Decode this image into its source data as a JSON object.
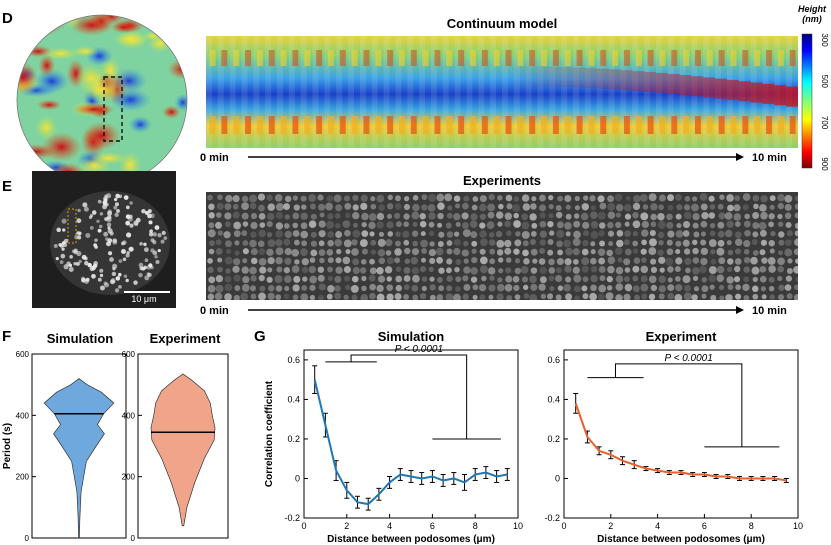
{
  "panels": {
    "D": "D",
    "E": "E",
    "F": "F",
    "G": "G"
  },
  "panel_d": {
    "title": "Continuum model",
    "time_start": "0 min",
    "time_end": "10 min",
    "colorbar": {
      "title_line1": "Height",
      "title_line2": "(nm)",
      "ticks": [
        "300",
        "500",
        "700",
        "900"
      ]
    }
  },
  "panel_e": {
    "title": "Experiments",
    "time_start": "0 min",
    "time_end": "10 min",
    "scale_bar": "10 μm"
  },
  "chart_data": [
    {
      "type": "violin",
      "title": "Simulation",
      "ylabel": "Period (s)",
      "ylim": [
        0,
        600
      ],
      "yticks": [
        0,
        200,
        400,
        600
      ],
      "median": 405,
      "color": "#6fa8dc"
    },
    {
      "type": "violin",
      "title": "Experiment",
      "ylim": [
        0,
        600
      ],
      "yticks": [
        0,
        200,
        400,
        600
      ],
      "median": 345,
      "color": "#f0a58a"
    },
    {
      "type": "line",
      "title": "Simulation",
      "xlabel": "Distance between podosomes (μm)",
      "ylabel": "Correlation coefficient",
      "xlim": [
        0,
        10
      ],
      "ylim": [
        -0.2,
        0.65
      ],
      "xticks": [
        0,
        2,
        4,
        6,
        8,
        10
      ],
      "yticks": [
        -0.2,
        0,
        0.2,
        0.4,
        0.6
      ],
      "annotation": "P < 0.0001",
      "color": "#1f77b4",
      "x": [
        0.5,
        1.0,
        1.5,
        2.0,
        2.5,
        3.0,
        3.5,
        4.0,
        4.5,
        5.0,
        5.5,
        6.0,
        6.5,
        7.0,
        7.5,
        8.0,
        8.5,
        9.0,
        9.5
      ],
      "y": [
        0.5,
        0.27,
        0.04,
        -0.06,
        -0.12,
        -0.13,
        -0.08,
        -0.02,
        0.02,
        0.01,
        0.0,
        0.01,
        -0.01,
        0.0,
        -0.02,
        0.02,
        0.03,
        0.01,
        0.02
      ],
      "err": [
        0.07,
        0.06,
        0.05,
        0.04,
        0.03,
        0.03,
        0.03,
        0.03,
        0.03,
        0.03,
        0.03,
        0.03,
        0.03,
        0.03,
        0.04,
        0.03,
        0.03,
        0.03,
        0.03
      ]
    },
    {
      "type": "line",
      "title": "Experiment",
      "xlabel": "Distance between podosomes (μm)",
      "xlim": [
        0,
        10
      ],
      "ylim": [
        -0.2,
        0.65
      ],
      "xticks": [
        0,
        2,
        4,
        6,
        8,
        10
      ],
      "yticks": [
        -0.2,
        0,
        0.2,
        0.4,
        0.6
      ],
      "annotation": "P < 0.0001",
      "color": "#e8612c",
      "x": [
        0.5,
        1.0,
        1.5,
        2.0,
        2.5,
        3.0,
        3.5,
        4.0,
        4.5,
        5.0,
        5.5,
        6.0,
        6.5,
        7.0,
        7.5,
        8.0,
        8.5,
        9.0,
        9.5
      ],
      "y": [
        0.38,
        0.21,
        0.14,
        0.12,
        0.09,
        0.07,
        0.05,
        0.04,
        0.03,
        0.03,
        0.02,
        0.02,
        0.01,
        0.01,
        0.0,
        0.0,
        0.0,
        0.0,
        -0.01
      ],
      "err": [
        0.05,
        0.03,
        0.02,
        0.02,
        0.02,
        0.02,
        0.01,
        0.01,
        0.01,
        0.01,
        0.01,
        0.01,
        0.01,
        0.01,
        0.01,
        0.01,
        0.01,
        0.01,
        0.01
      ]
    }
  ]
}
